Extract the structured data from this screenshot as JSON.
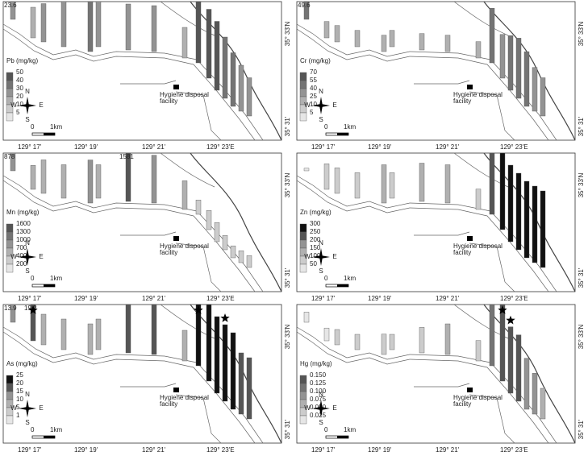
{
  "x_axis_labels": [
    "129° 17'",
    "129° 19'",
    "129° 21'",
    "129° 23'E"
  ],
  "y_axis_labels": [
    "35° 33'N",
    "35° 31'"
  ],
  "facility_label": [
    "Hygiene disposal",
    "facility"
  ],
  "compass": [
    "N",
    "S",
    "W",
    "E"
  ],
  "scale_labels": [
    "0",
    "1km"
  ],
  "panels": [
    {
      "legend_title": "Pb (mg/kg)",
      "legend_ticks": [
        5,
        10,
        20,
        30,
        40,
        50
      ],
      "legend_colors": [
        "#e6e6e6",
        "#cccccc",
        "#b0b0b0",
        "#939393",
        "#747474",
        "#555555"
      ],
      "values": [
        23.6,
        20,
        25,
        30,
        35,
        30,
        30,
        30,
        20,
        45,
        45,
        45,
        40,
        35,
        30,
        25
      ],
      "value_labels": [
        "23.6",
        null,
        null,
        null,
        null,
        null,
        null,
        null,
        null,
        null,
        null,
        null,
        null,
        null,
        null,
        null
      ]
    },
    {
      "legend_title": "Cr (mg/kg)",
      "legend_ticks": [
        5,
        10,
        25,
        40,
        55,
        70
      ],
      "legend_colors": [
        "#e6e6e6",
        "#cccccc",
        "#b0b0b0",
        "#939393",
        "#747474",
        "#555555"
      ],
      "values": [
        49.6,
        15,
        15,
        15,
        15,
        15,
        15,
        15,
        15,
        50,
        40,
        50,
        55,
        50,
        40,
        35
      ],
      "value_labels": [
        "49.6",
        null,
        null,
        null,
        null,
        null,
        null,
        null,
        null,
        null,
        null,
        null,
        null,
        null,
        null,
        null
      ]
    },
    {
      "legend_title": "Mn (mg/kg)",
      "legend_ticks": [
        200,
        400,
        700,
        1000,
        1300,
        1600
      ],
      "legend_colors": [
        "#e6e6e6",
        "#cccccc",
        "#b0b0b0",
        "#939393",
        "#747474",
        "#555555"
      ],
      "values": [
        878,
        500,
        700,
        700,
        900,
        700,
        1581,
        1000,
        600,
        300,
        400,
        400,
        300,
        250,
        250,
        250
      ],
      "value_labels": [
        "878",
        null,
        null,
        null,
        null,
        null,
        "1581",
        null,
        null,
        null,
        null,
        null,
        null,
        null,
        null,
        null
      ]
    },
    {
      "legend_title": "Zn (mg/kg)",
      "legend_ticks": [
        50,
        100,
        150,
        200,
        250,
        300
      ],
      "legend_colors": [
        "#e6e6e6",
        "#cccccc",
        "#b0b0b0",
        "#939393",
        "#555555",
        "#111111"
      ],
      "values": [
        10,
        100,
        100,
        100,
        150,
        100,
        150,
        150,
        80,
        250,
        300,
        300,
        300,
        300,
        300,
        300
      ],
      "value_labels": [
        null,
        null,
        null,
        null,
        null,
        null,
        null,
        null,
        null,
        null,
        null,
        null,
        null,
        null,
        null,
        null
      ]
    },
    {
      "legend_title": "As (mg/kg)",
      "legend_ticks": [
        1,
        5,
        10,
        15,
        20,
        25
      ],
      "legend_colors": [
        "#e6e6e6",
        "#cccccc",
        "#b0b0b0",
        "#939393",
        "#555555",
        "#111111"
      ],
      "values": [
        13.9,
        19.2,
        10,
        10,
        10,
        10,
        20,
        20,
        10,
        25,
        25,
        25,
        25,
        25,
        20,
        20
      ],
      "value_labels": [
        "13.9",
        "19.2",
        null,
        null,
        null,
        null,
        null,
        null,
        null,
        null,
        null,
        null,
        null,
        null,
        null,
        null
      ]
    },
    {
      "legend_title": "Hg (mg/kg)",
      "legend_ticks": [
        0.025,
        {
          "value": 0.05,
          "label": "0.050"
        },
        0.075,
        {
          "value": 0.1,
          "label": "0.100"
        },
        0.125,
        {
          "value": 0.15,
          "label": "0.150"
        }
      ],
      "legend_colors": [
        "#e6e6e6",
        "#cccccc",
        "#b0b0b0",
        "#939393",
        "#747474",
        "#555555"
      ],
      "values": [
        0.02,
        0.025,
        0.03,
        0.03,
        0.04,
        0.03,
        0.05,
        0.06,
        0.04,
        0.12,
        0.15,
        0.13,
        0.13,
        0.1,
        0.08,
        0.06
      ],
      "value_labels": [
        null,
        null,
        null,
        null,
        null,
        null,
        null,
        null,
        null,
        null,
        null,
        null,
        null,
        null,
        null,
        null
      ]
    }
  ]
}
